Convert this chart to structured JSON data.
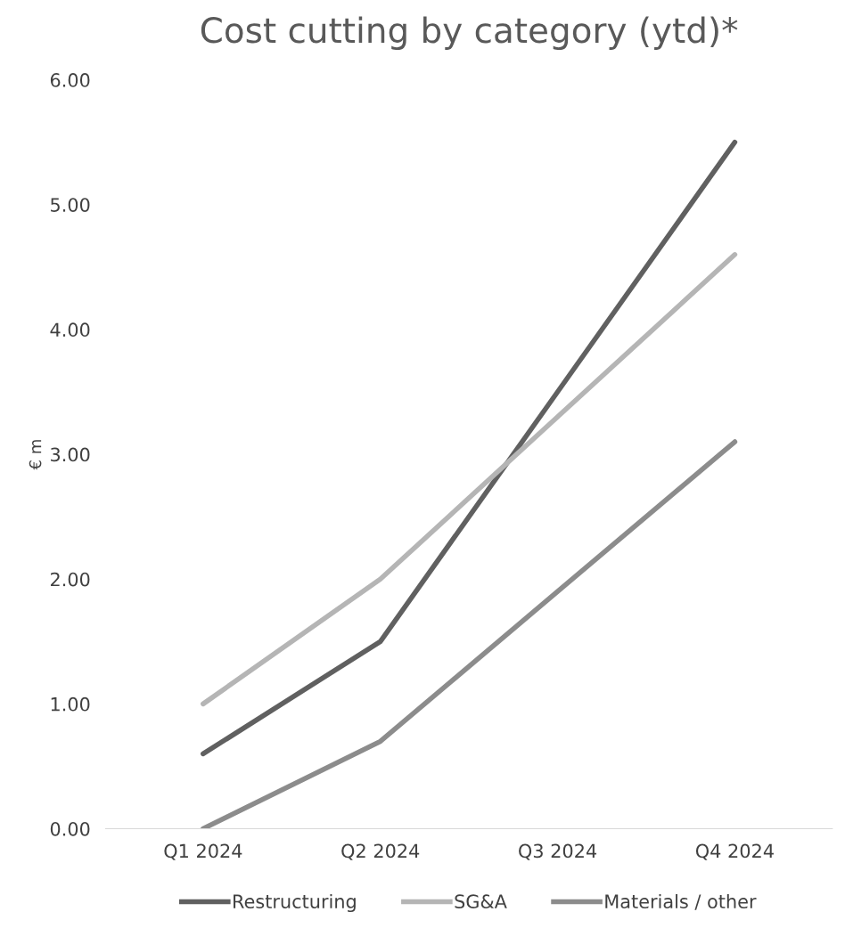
{
  "chart_data": {
    "type": "line",
    "title": "Cost cutting by category (ytd)*",
    "ylabel": "€ m",
    "categories": [
      "Q1 2024",
      "Q2 2024",
      "Q3 2024",
      "Q4 2024"
    ],
    "series": [
      {
        "name": "Restructuring",
        "color": "#606060",
        "values": [
          0.6,
          1.5,
          3.5,
          5.5
        ]
      },
      {
        "name": "SG&A",
        "color": "#b5b5b5",
        "values": [
          1.0,
          2.0,
          3.3,
          4.6
        ]
      },
      {
        "name": "Materials / other",
        "color": "#8c8c8c",
        "values": [
          0.0,
          0.7,
          1.9,
          3.1
        ]
      }
    ],
    "ylim": [
      0,
      6
    ],
    "yticks": [
      {
        "value": 0,
        "label": "0.00"
      },
      {
        "value": 1,
        "label": "1.00"
      },
      {
        "value": 2,
        "label": "2.00"
      },
      {
        "value": 3,
        "label": "3.00"
      },
      {
        "value": 4,
        "label": "4.00"
      },
      {
        "value": 5,
        "label": "5.00"
      },
      {
        "value": 6,
        "label": "6.00"
      }
    ],
    "grid": false,
    "legend": "bottom",
    "marker": "none",
    "line_style": "solid"
  }
}
